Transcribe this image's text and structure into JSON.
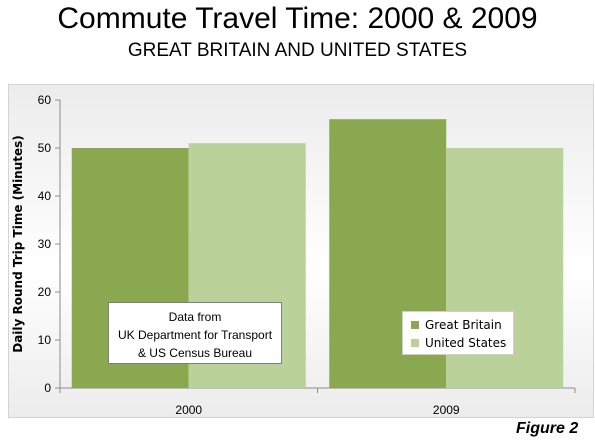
{
  "title": "Commute Travel Time: 2000 & 2009",
  "subtitle": "GREAT BRITAIN AND UNITED STATES",
  "note": [
    "Data from",
    "UK Department for Transport",
    "& US Census Bureau"
  ],
  "figure_label": "Figure 2",
  "colors": {
    "great_britain": "#8aa84f",
    "united_states": "#bad19a"
  },
  "chart_data": {
    "type": "bar",
    "categories": [
      "2000",
      "2009"
    ],
    "series": [
      {
        "name": "Great Britain",
        "values": [
          50,
          56
        ]
      },
      {
        "name": "United States",
        "values": [
          51,
          50
        ]
      }
    ],
    "ylabel": "Daily Round Trip Time (Minutes)",
    "xlabel": "",
    "ylim": [
      0,
      60
    ],
    "yticks": [
      0,
      10,
      20,
      30,
      40,
      50,
      60
    ],
    "grid": false,
    "legend": "inside-bottom-right"
  }
}
